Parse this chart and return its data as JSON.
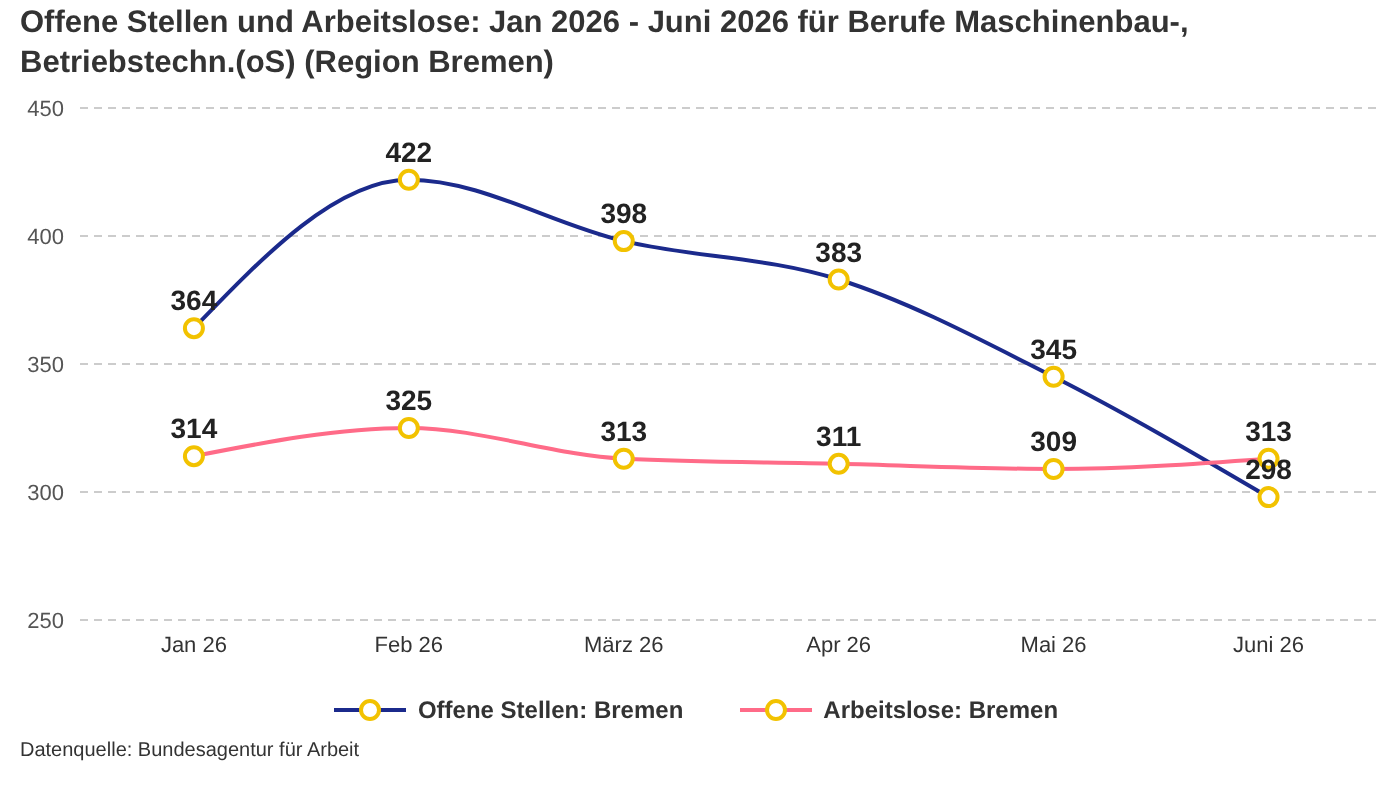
{
  "chart_data": {
    "type": "line",
    "title": "Offene Stellen und Arbeitslose: Jan 2026 - Juni 2026 für Berufe Maschinenbau-, Betriebstechn.(oS) (Region Bremen)",
    "categories": [
      "Jan 26",
      "Feb 26",
      "März 26",
      "Apr 26",
      "Mai 26",
      "Juni 26"
    ],
    "series": [
      {
        "name": "Offene Stellen: Bremen",
        "color": "#1b2a8c",
        "values": [
          364,
          422,
          398,
          383,
          345,
          298
        ]
      },
      {
        "name": "Arbeitslose: Bremen",
        "color": "#ff6b88",
        "values": [
          314,
          325,
          313,
          311,
          309,
          313
        ]
      }
    ],
    "ylim": [
      250,
      450
    ],
    "yticks": [
      250,
      300,
      350,
      400,
      450
    ],
    "grid": "y",
    "legend": "bottom",
    "marker": "circle",
    "data_labels": true,
    "annotations": [
      "Datenquelle: Bundesagentur für Arbeit"
    ]
  }
}
